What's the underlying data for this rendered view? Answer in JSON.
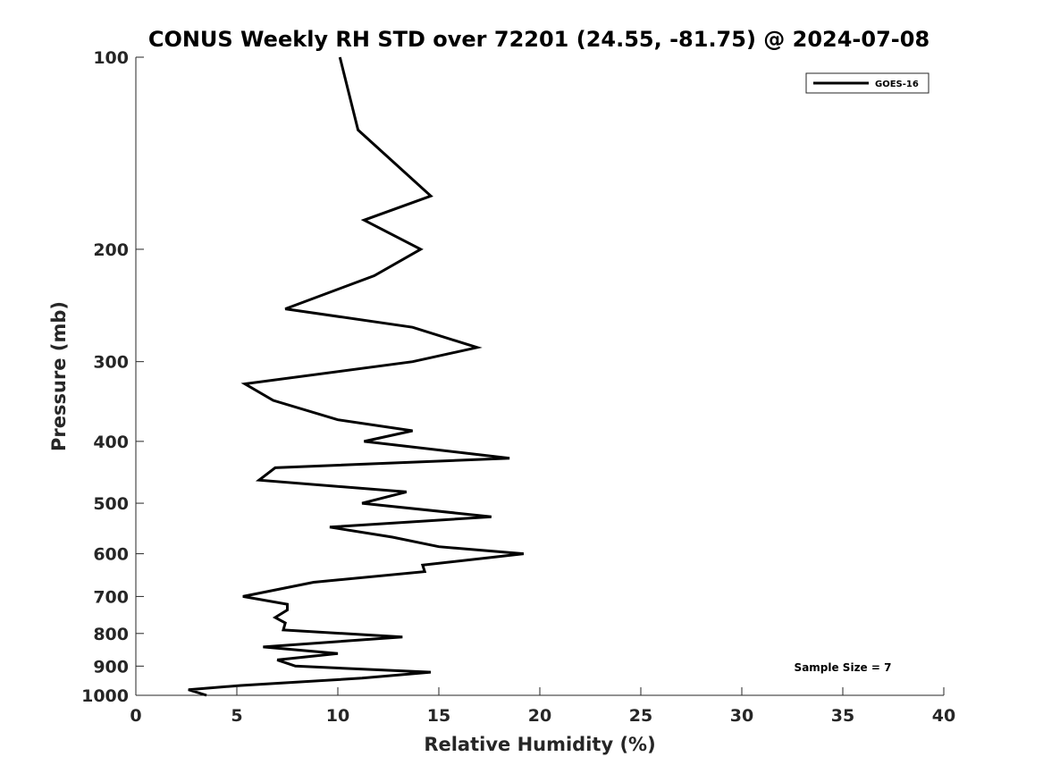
{
  "chart_data": {
    "type": "line",
    "title": "CONUS Weekly RH STD over 72201 (24.55, -81.75) @ 2024-07-08",
    "xlabel": "Relative Humidity (%)",
    "ylabel": "Pressure (mb)",
    "xlim": [
      0,
      40
    ],
    "ylim": [
      100,
      1000
    ],
    "y_scale": "log",
    "y_reversed": true,
    "grid": false,
    "legend_position": "top-right",
    "x_ticks": [
      0,
      5,
      10,
      15,
      20,
      25,
      30,
      35,
      40
    ],
    "y_ticks": [
      100,
      200,
      300,
      400,
      500,
      600,
      700,
      800,
      900,
      1000
    ],
    "annotation": "Sample Size = 7",
    "series": [
      {
        "name": "GOES-16",
        "color": "#000000",
        "x": [
          10.1,
          11.0,
          14.6,
          11.3,
          14.1,
          11.8,
          7.4,
          13.7,
          16.9,
          13.7,
          5.4,
          6.8,
          10.0,
          13.7,
          11.3,
          18.5,
          6.9,
          6.1,
          13.4,
          11.2,
          17.6,
          9.6,
          12.7,
          15.0,
          19.2,
          14.2,
          14.3,
          8.8,
          5.3,
          7.5,
          7.5,
          6.9,
          7.4,
          7.3,
          13.2,
          6.3,
          10.0,
          7.0,
          7.9,
          14.6,
          11.2,
          5.2,
          2.6,
          3.5
        ],
        "y": [
          100,
          130,
          165,
          180,
          200,
          220,
          248,
          265,
          285,
          300,
          325,
          345,
          370,
          385,
          400,
          425,
          440,
          460,
          480,
          500,
          525,
          545,
          565,
          585,
          600,
          625,
          640,
          665,
          700,
          720,
          735,
          755,
          770,
          790,
          810,
          840,
          860,
          880,
          900,
          920,
          940,
          965,
          980,
          1000
        ]
      }
    ]
  }
}
